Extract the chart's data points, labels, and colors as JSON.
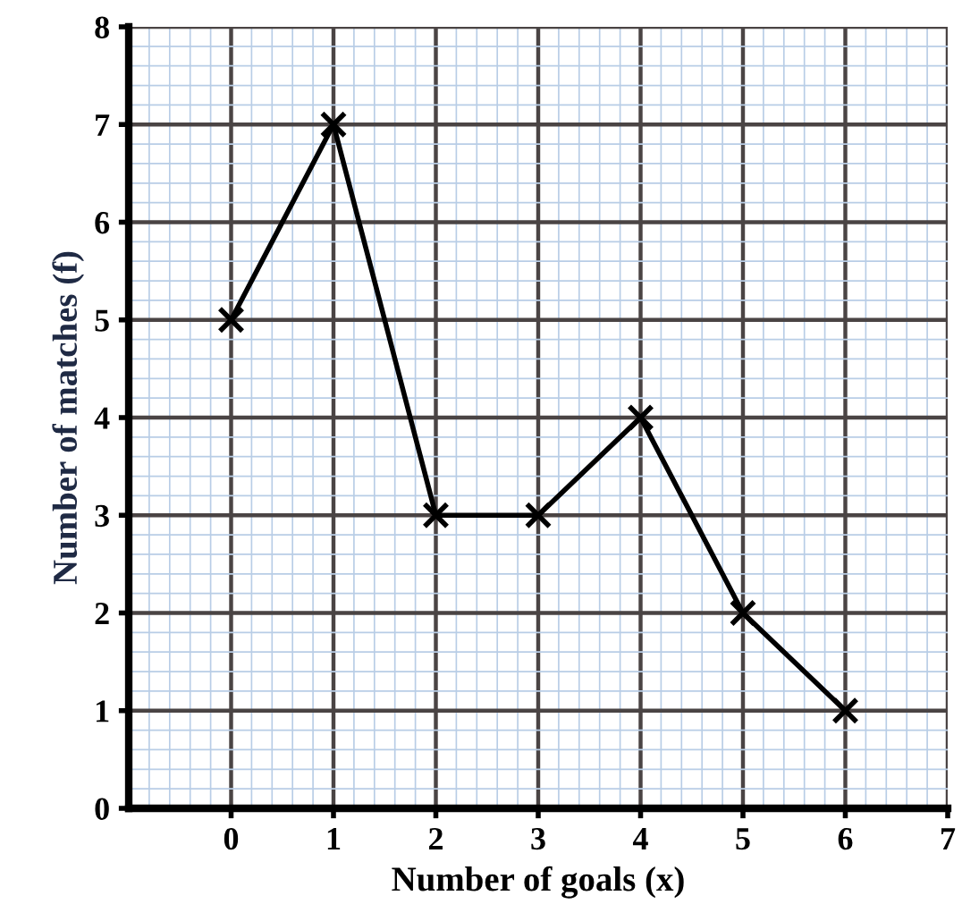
{
  "chart_data": {
    "type": "line",
    "xlabel": "Number of goals (x)",
    "ylabel": "Number of matches (f)",
    "x": [
      0,
      1,
      2,
      3,
      4,
      5,
      6
    ],
    "series": [
      {
        "color": "#000000",
        "values": [
          5,
          7,
          3,
          3,
          4,
          2,
          1
        ]
      }
    ],
    "xlim": [
      -1,
      7
    ],
    "ylim": [
      0,
      8
    ],
    "xticks": [
      {
        "value": -1,
        "label": null
      },
      {
        "value": -0.8,
        "label": null
      },
      {
        "value": -0.6,
        "label": null
      },
      {
        "value": -0.4,
        "label": null
      },
      {
        "value": -0.2,
        "label": null
      },
      0,
      {
        "value": 0.2,
        "label": null
      },
      {
        "value": 0.4,
        "label": null
      },
      {
        "value": 0.6,
        "label": null
      },
      {
        "value": 0.8,
        "label": null
      },
      1,
      {
        "value": 1.2,
        "label": null
      },
      {
        "value": 1.4,
        "label": null
      },
      {
        "value": 1.6,
        "label": null
      },
      {
        "value": 1.8,
        "label": null
      },
      2,
      {
        "value": 2.2,
        "label": null
      },
      {
        "value": 2.4,
        "label": null
      },
      {
        "value": 2.6,
        "label": null
      },
      {
        "value": 2.8,
        "label": null
      },
      3,
      {
        "value": 3.2,
        "label": null
      },
      {
        "value": 3.4,
        "label": null
      },
      {
        "value": 3.6,
        "label": null
      },
      {
        "value": 3.8,
        "label": null
      },
      4,
      {
        "value": 4.2,
        "label": null
      },
      {
        "value": 4.4,
        "label": null
      },
      {
        "value": 4.6,
        "label": null
      },
      {
        "value": 4.8,
        "label": null
      },
      5,
      {
        "value": 5.2,
        "label": null
      },
      {
        "value": 5.4,
        "label": null
      },
      {
        "value": 5.6,
        "label": null
      },
      {
        "value": 5.8,
        "label": null
      },
      6,
      {
        "value": 6.2,
        "label": null
      },
      {
        "value": 6.4,
        "label": null
      },
      {
        "value": 6.6,
        "label": null
      },
      {
        "value": 6.8,
        "label": null
      },
      7
    ],
    "yticks": [
      0,
      {
        "value": 0.2,
        "label": null
      },
      {
        "value": 0.4,
        "label": null
      },
      {
        "value": 0.6,
        "label": null
      },
      {
        "value": 0.8,
        "label": null
      },
      1,
      {
        "value": 1.2,
        "label": null
      },
      {
        "value": 1.4,
        "label": null
      },
      {
        "value": 1.6,
        "label": null
      },
      {
        "value": 1.8,
        "label": null
      },
      2,
      {
        "value": 2.2,
        "label": null
      },
      {
        "value": 2.4,
        "label": null
      },
      {
        "value": 2.6,
        "label": null
      },
      {
        "value": 2.8,
        "label": null
      },
      3,
      {
        "value": 3.2,
        "label": null
      },
      {
        "value": 3.4,
        "label": null
      },
      {
        "value": 3.6,
        "label": null
      },
      {
        "value": 3.8,
        "label": null
      },
      4,
      {
        "value": 4.2,
        "label": null
      },
      {
        "value": 4.4,
        "label": null
      },
      {
        "value": 4.6,
        "label": null
      },
      {
        "value": 4.8,
        "label": null
      },
      5,
      {
        "value": 5.2,
        "label": null
      },
      {
        "value": 5.4,
        "label": null
      },
      {
        "value": 5.6,
        "label": null
      },
      {
        "value": 5.8,
        "label": null
      },
      6,
      {
        "value": 6.2,
        "label": null
      },
      {
        "value": 6.4,
        "label": null
      },
      {
        "value": 6.6,
        "label": null
      },
      {
        "value": 6.8,
        "label": null
      },
      7,
      {
        "value": 7.2,
        "label": null
      },
      {
        "value": 7.4,
        "label": null
      },
      {
        "value": 7.6,
        "label": null
      },
      {
        "value": 7.8,
        "label": null
      },
      8
    ],
    "grid": true,
    "marker": "cross",
    "line_style": "solid"
  }
}
